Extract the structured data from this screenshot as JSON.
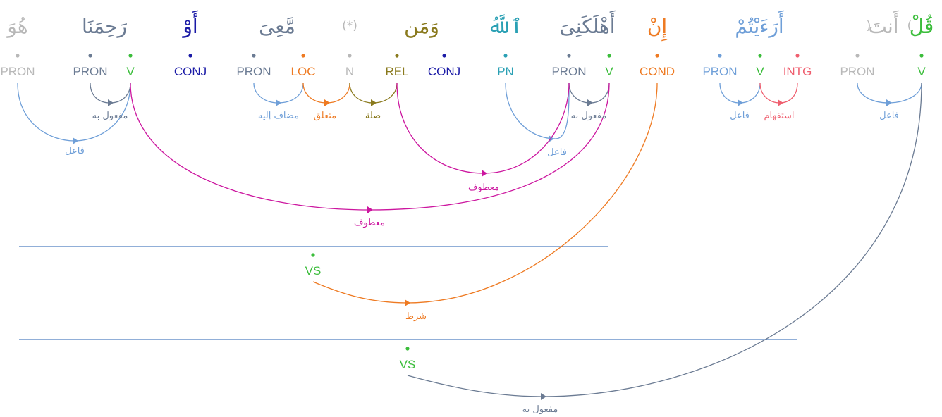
{
  "colors": {
    "green": "#3bbd3b",
    "slate": "#6b7b93",
    "navy": "#1a1aa6",
    "orange": "#ee7a22",
    "grey": "#b8b8b8",
    "olive": "#8a7a1e",
    "teal": "#2aa0b4",
    "blue": "#6f9fd8",
    "pink": "#ef5f6f",
    "magenta": "#cc169f",
    "lineblue": "#4f7fc0"
  },
  "words": [
    {
      "text": "هُوَ",
      "paren": "",
      "color": "grey"
    },
    {
      "text": "رَحِمَنَا",
      "paren": "",
      "color": "slate"
    },
    {
      "text": "أَوْ",
      "paren": "",
      "color": "navy"
    },
    {
      "text": "مَّعِىَ",
      "paren": "",
      "color": "slate"
    },
    {
      "text": "",
      "paren": "(*)",
      "color": "grey"
    },
    {
      "text": "وَمَن",
      "paren": "",
      "color": "olive"
    },
    {
      "text": "ٱللَّهُ",
      "paren": "",
      "color": "teal"
    },
    {
      "text": "أَهْلَكَنِىَ",
      "paren": "",
      "color": "slate"
    },
    {
      "text": "إِنْ",
      "paren": "",
      "color": "orange"
    },
    {
      "text": "أَرَءَيْتُمْ",
      "paren": "",
      "color": "blue"
    },
    {
      "text": "أَنتَ",
      "paren": "()",
      "color": "grey"
    },
    {
      "text": "قُلْ",
      "paren": "",
      "color": "green"
    }
  ],
  "tags": [
    {
      "label": "PRON",
      "color": "grey"
    },
    {
      "label": "PRON",
      "color": "slate"
    },
    {
      "label": "V",
      "color": "green"
    },
    {
      "label": "CONJ",
      "color": "navy"
    },
    {
      "label": "PRON",
      "color": "slate"
    },
    {
      "label": "LOC",
      "color": "orange"
    },
    {
      "label": "N",
      "color": "grey"
    },
    {
      "label": "REL",
      "color": "olive"
    },
    {
      "label": "CONJ",
      "color": "navy"
    },
    {
      "label": "PN",
      "color": "teal"
    },
    {
      "label": "PRON",
      "color": "slate"
    },
    {
      "label": "V",
      "color": "green"
    },
    {
      "label": "COND",
      "color": "orange"
    },
    {
      "label": "PRON",
      "color": "blue"
    },
    {
      "label": "V",
      "color": "green"
    },
    {
      "label": "INTG",
      "color": "pink"
    },
    {
      "label": "PRON",
      "color": "grey"
    },
    {
      "label": "V",
      "color": "green"
    },
    {
      "label": "VS",
      "color": "green"
    },
    {
      "label": "VS",
      "color": "green"
    }
  ],
  "relations": [
    {
      "label": "فاعل",
      "color": "blue"
    },
    {
      "label": "مفعول به",
      "color": "slate"
    },
    {
      "label": "مضاف إليه",
      "color": "blue"
    },
    {
      "label": "متعلق",
      "color": "orange"
    },
    {
      "label": "صلة",
      "color": "olive"
    },
    {
      "label": "فاعل",
      "color": "blue"
    },
    {
      "label": "مفعول به",
      "color": "slate"
    },
    {
      "label": "معطوف",
      "color": "magenta"
    },
    {
      "label": "معطوف",
      "color": "magenta"
    },
    {
      "label": "فاعل",
      "color": "blue"
    },
    {
      "label": "استفهام",
      "color": "pink"
    },
    {
      "label": "فاعل",
      "color": "blue"
    },
    {
      "label": "شرط",
      "color": "orange"
    },
    {
      "label": "مفعول به",
      "color": "slate"
    }
  ]
}
